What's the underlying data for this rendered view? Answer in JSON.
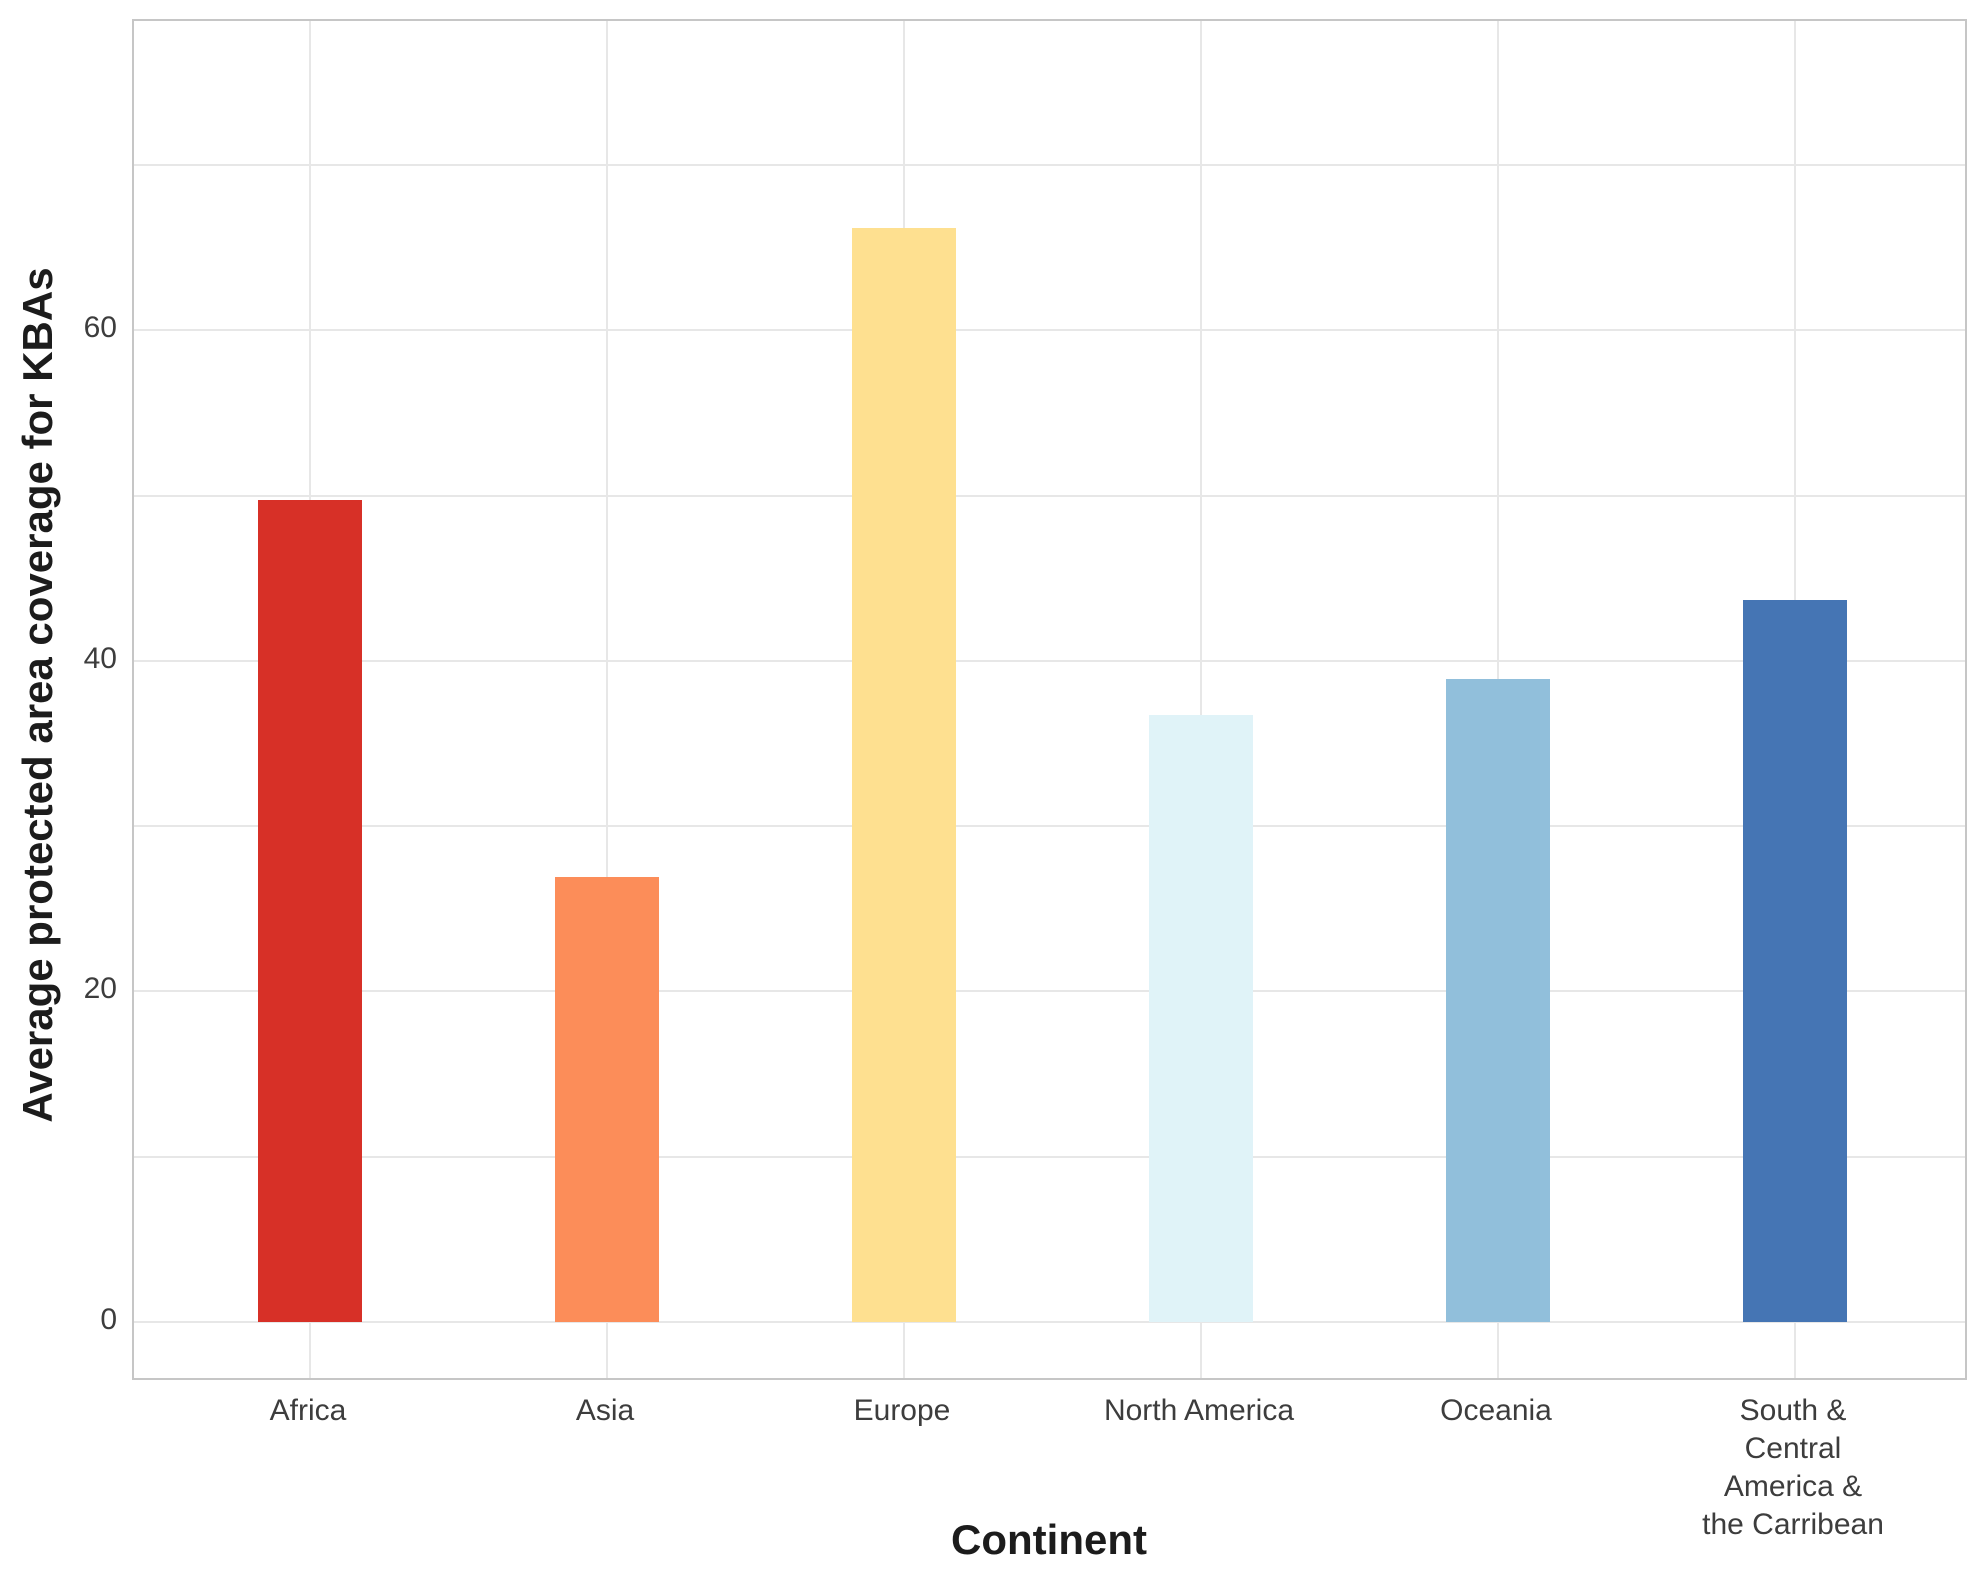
{
  "figure": {
    "xlabel": "Continent",
    "ylabel": "Average protected area coverage for KBAs"
  },
  "chart_data": {
    "type": "bar",
    "title": "",
    "xlabel": "Continent",
    "ylabel": "Average protected area coverage for KBAs",
    "categories": [
      "Africa",
      "Asia",
      "Europe",
      "North America",
      "Oceania",
      "South & Central\nAmerica &\nthe Carribean"
    ],
    "values": [
      49.7,
      26.9,
      66.2,
      36.7,
      38.9,
      43.7
    ],
    "bar_colors": [
      "#d73027",
      "#fc8d59",
      "#fee090",
      "#e0f3f8",
      "#91bfdb",
      "#4575b4"
    ],
    "y_ticks_labeled": [
      0,
      20,
      40,
      60
    ],
    "gridlines_y": [
      0,
      10,
      20,
      30,
      40,
      50,
      60,
      70
    ],
    "ylim": [
      -3.6,
      78.7
    ],
    "grid": true,
    "legend": false,
    "background_color": "#ffffff",
    "gridline_color": "#e7e7e7",
    "axis_border_color": "#c6c6c6",
    "tick_label_color": "#3d3d3d",
    "axis_label_color": "#1c1c1c"
  }
}
